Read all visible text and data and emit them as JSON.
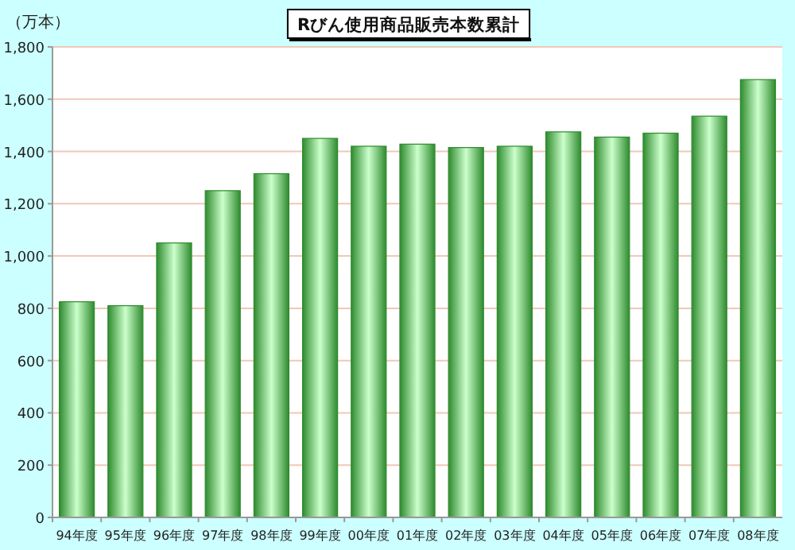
{
  "chart_data": {
    "type": "bar",
    "title": "Rびん使用商品販売本数累計",
    "ylabel": "（万本）",
    "categories": [
      "94年度",
      "95年度",
      "96年度",
      "97年度",
      "98年度",
      "99年度",
      "00年度",
      "01年度",
      "02年度",
      "03年度",
      "04年度",
      "05年度",
      "06年度",
      "07年度",
      "08年度"
    ],
    "values": [
      825,
      810,
      1050,
      1250,
      1315,
      1450,
      1420,
      1428,
      1415,
      1420,
      1475,
      1455,
      1470,
      1535,
      1675
    ],
    "color": "#2e8b2e",
    "ylim": [
      0,
      1800
    ],
    "yticks": [
      0,
      200,
      400,
      600,
      800,
      {
        "value": 1000,
        "label": "1,000"
      },
      {
        "value": 1200,
        "label": "1,200"
      },
      {
        "value": 1400,
        "label": "1,400"
      },
      {
        "value": 1600,
        "label": "1,600"
      },
      {
        "value": 1800,
        "label": "1,800"
      }
    ],
    "grid": "y"
  }
}
